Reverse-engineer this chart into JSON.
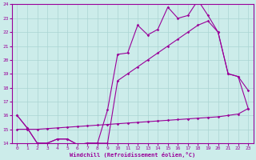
{
  "xlabel": "Windchill (Refroidissement éolien,°C)",
  "bg_color": "#ccecea",
  "line_color": "#990099",
  "grid_color": "#aad4d2",
  "x_values": [
    0,
    1,
    2,
    3,
    4,
    5,
    6,
    7,
    8,
    9,
    10,
    11,
    12,
    13,
    14,
    15,
    16,
    17,
    18,
    19,
    20,
    21,
    22,
    23
  ],
  "line1": [
    16.0,
    15.1,
    14.0,
    14.0,
    14.3,
    14.3,
    13.9,
    14.0,
    14.0,
    16.4,
    20.4,
    20.5,
    22.5,
    21.8,
    22.2,
    23.8,
    23.0,
    23.2,
    24.3,
    23.2,
    22.0,
    19.0,
    18.8,
    17.8
  ],
  "line2": [
    16.0,
    15.1,
    14.0,
    14.0,
    14.3,
    14.3,
    13.9,
    14.0,
    14.0,
    14.0,
    18.5,
    19.0,
    19.5,
    20.0,
    20.5,
    21.0,
    21.5,
    22.0,
    22.5,
    22.8,
    22.0,
    19.0,
    18.8,
    16.5
  ],
  "line3": [
    15.0,
    15.0,
    15.0,
    15.05,
    15.1,
    15.15,
    15.2,
    15.25,
    15.3,
    15.35,
    15.4,
    15.45,
    15.5,
    15.55,
    15.6,
    15.65,
    15.7,
    15.75,
    15.8,
    15.85,
    15.9,
    16.0,
    16.1,
    16.5
  ],
  "ylim": [
    14,
    24
  ],
  "xlim": [
    -0.5,
    23.5
  ],
  "yticks": [
    14,
    15,
    16,
    17,
    18,
    19,
    20,
    21,
    22,
    23,
    24
  ],
  "xticks": [
    0,
    1,
    2,
    3,
    4,
    5,
    6,
    7,
    8,
    9,
    10,
    11,
    12,
    13,
    14,
    15,
    16,
    17,
    18,
    19,
    20,
    21,
    22,
    23
  ]
}
